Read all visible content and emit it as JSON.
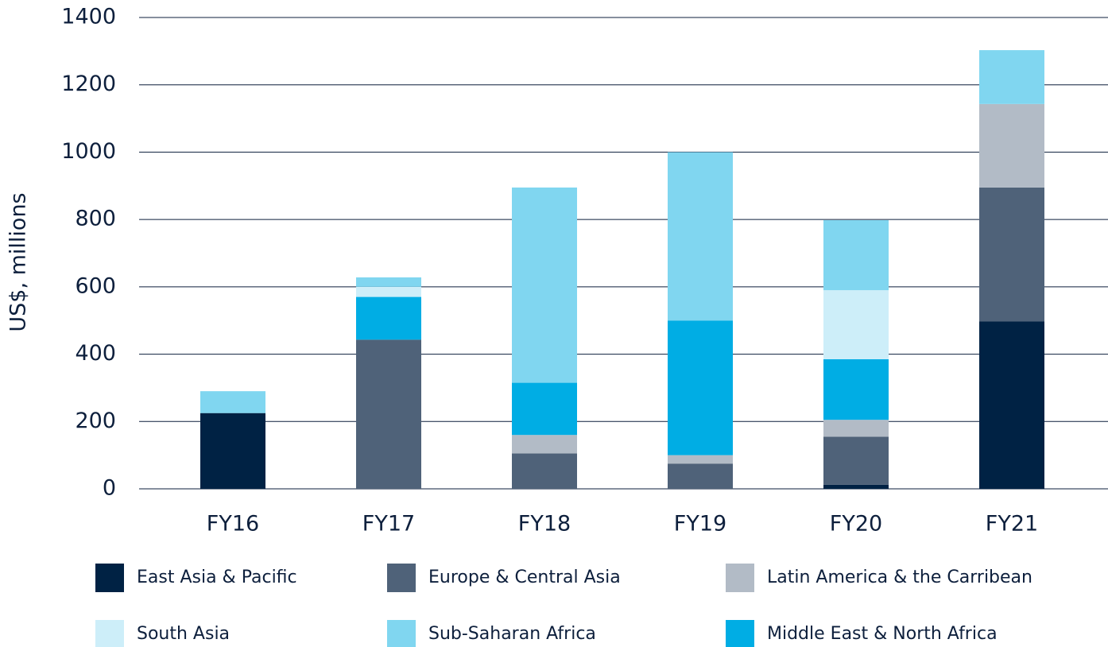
{
  "chart_data": {
    "type": "stacked_bar",
    "ylabel": "US$, millions",
    "categories": [
      "FY16",
      "FY17",
      "FY18",
      "FY19",
      "FY20",
      "FY21"
    ],
    "ylim": [
      0,
      1400
    ],
    "yticks": [
      0,
      200,
      400,
      600,
      800,
      1000,
      1200,
      1400
    ],
    "grid": true,
    "series": [
      {
        "name": "East Asia & Pacific",
        "color": "#002244",
        "values": [
          225,
          0,
          0,
          0,
          12,
          497
        ]
      },
      {
        "name": "Europe & Central Asia",
        "color": "#4f6279",
        "values": [
          0,
          443,
          105,
          75,
          143,
          398
        ]
      },
      {
        "name": "Latin America & the Carribean",
        "color": "#b2bbc6",
        "values": [
          0,
          0,
          55,
          25,
          50,
          248
        ]
      },
      {
        "name": "Middle East & North Africa",
        "color": "#00ade4",
        "values": [
          0,
          127,
          155,
          400,
          180,
          0
        ]
      },
      {
        "name": "South Asia",
        "color": "#cdeef9",
        "values": [
          0,
          30,
          0,
          0,
          205,
          0
        ]
      },
      {
        "name": "Sub-Saharan Africa",
        "color": "#80d6f0",
        "values": [
          65,
          28,
          580,
          500,
          208,
          160
        ]
      }
    ]
  }
}
